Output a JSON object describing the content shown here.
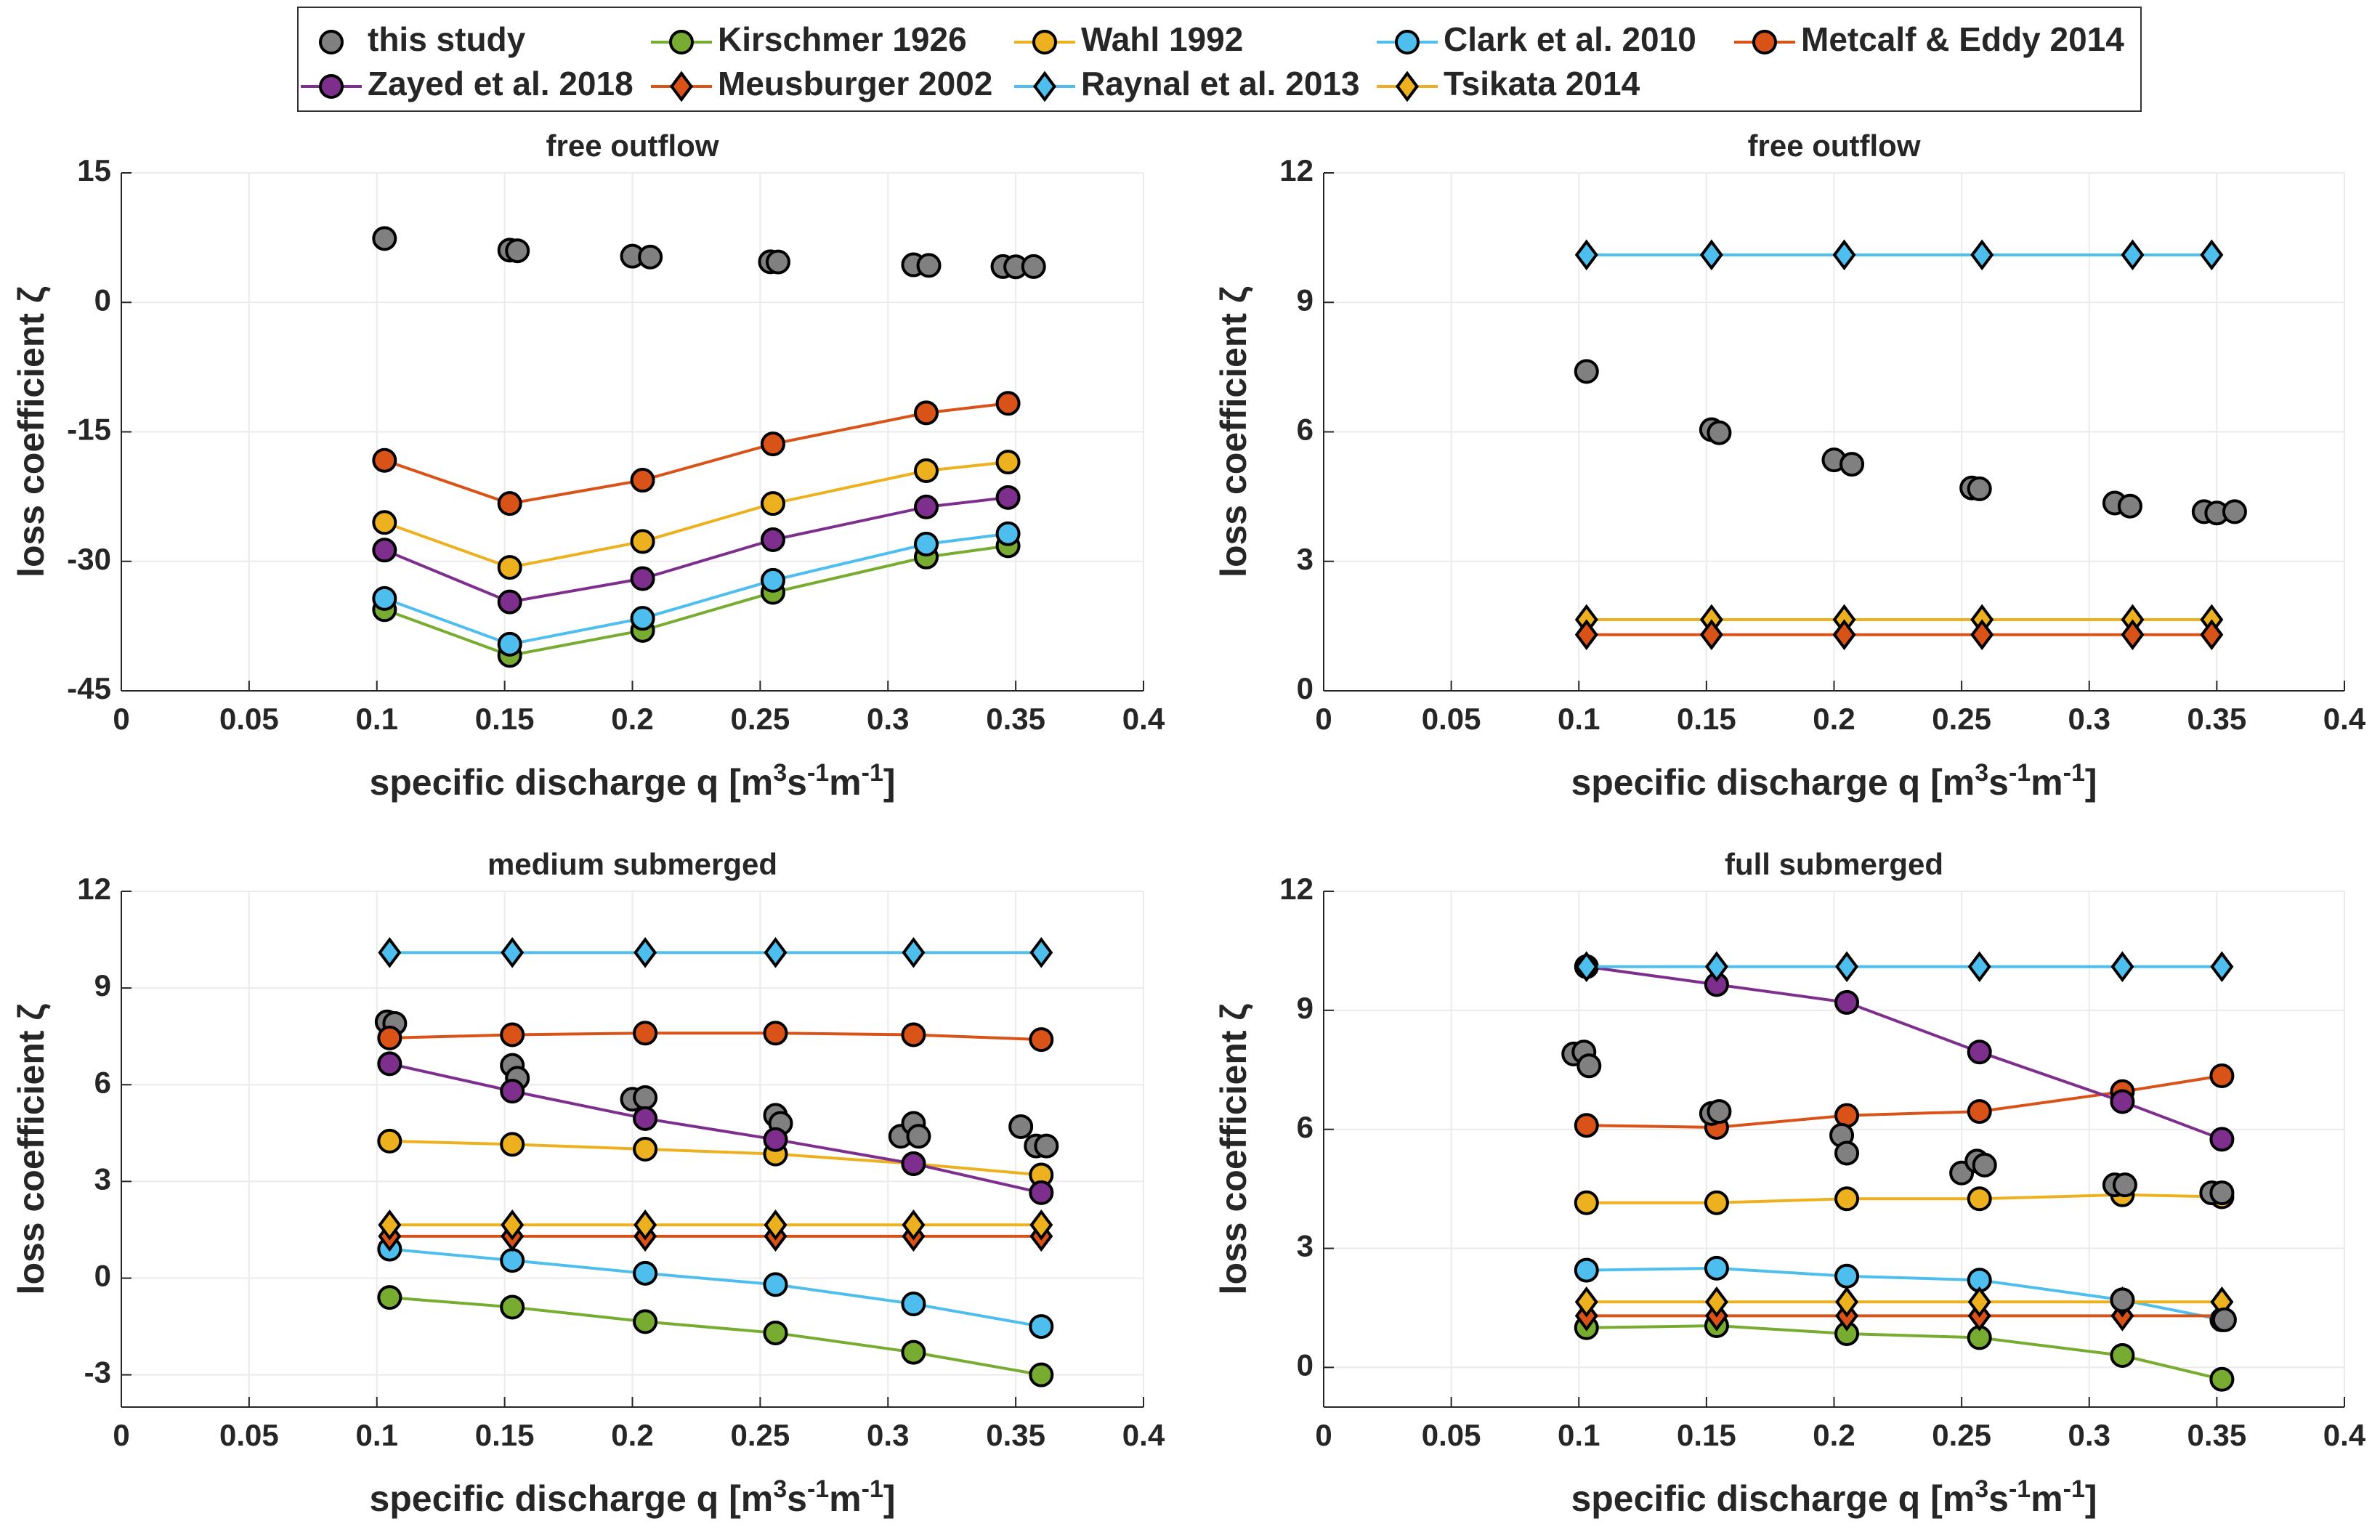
{
  "chart_data": [
    {
      "type": "line",
      "title": "free outflow",
      "xlabel": [
        "specific discharge q [m",
        "3",
        "s",
        "-1",
        "m",
        "-1",
        "]"
      ],
      "ylabel": "loss coefficient ζ",
      "xlim": [
        0,
        0.4
      ],
      "xticks": [
        0,
        0.05,
        0.1,
        0.15,
        0.2,
        0.25,
        0.3,
        0.35,
        0.4
      ],
      "ylim": [
        -45,
        15
      ],
      "yticks": [
        -45,
        -30,
        -15,
        0,
        15
      ],
      "grid": true,
      "series": [
        {
          "name": "this study",
          "color": "#808080",
          "marker": "circle",
          "line": false,
          "x": [
            0.103,
            0.152,
            0.155,
            0.2,
            0.207,
            0.254,
            0.257,
            0.31,
            0.316,
            0.345,
            0.35,
            0.357
          ],
          "values": [
            7.4,
            6.05,
            5.98,
            5.35,
            5.25,
            4.7,
            4.68,
            4.35,
            4.28,
            4.15,
            4.12,
            4.15
          ]
        },
        {
          "name": "Kirschmer 1926",
          "color": "#77ac30",
          "marker": "circle",
          "line": true,
          "x": [
            0.103,
            0.152,
            0.204,
            0.255,
            0.315,
            0.347
          ],
          "values": [
            -35.6,
            -40.9,
            -38,
            -33.6,
            -29.5,
            -28.2
          ]
        },
        {
          "name": "Wahl 1992",
          "color": "#edb120",
          "marker": "circle",
          "line": true,
          "x": [
            0.103,
            0.152,
            0.204,
            0.255,
            0.315,
            0.347
          ],
          "values": [
            -25.5,
            -30.7,
            -27.7,
            -23.3,
            -19.5,
            -18.5
          ]
        },
        {
          "name": "Clark et al. 2010",
          "color": "#4dbeee",
          "marker": "circle",
          "line": true,
          "x": [
            0.103,
            0.152,
            0.204,
            0.255,
            0.315,
            0.347
          ],
          "values": [
            -34.3,
            -39.6,
            -36.6,
            -32.2,
            -28,
            -26.8
          ]
        },
        {
          "name": "Metcalf & Eddy 2014",
          "color": "#d95319",
          "marker": "circle",
          "line": true,
          "x": [
            0.103,
            0.152,
            0.204,
            0.255,
            0.315,
            0.347
          ],
          "values": [
            -18.3,
            -23.3,
            -20.6,
            -16.4,
            -12.8,
            -11.7
          ]
        },
        {
          "name": "Zayed et al. 2018",
          "color": "#7e2f8e",
          "marker": "circle",
          "line": true,
          "x": [
            0.103,
            0.152,
            0.204,
            0.255,
            0.315,
            0.347
          ],
          "values": [
            -28.7,
            -34.7,
            -32,
            -27.5,
            -23.7,
            -22.6
          ]
        }
      ]
    },
    {
      "type": "line",
      "title": "free outflow",
      "xlabel": [
        "specific discharge q [m",
        "3",
        "s",
        "-1",
        "m",
        "-1",
        "]"
      ],
      "ylabel": "loss coefficient ζ",
      "xlim": [
        0,
        0.4
      ],
      "xticks": [
        0,
        0.05,
        0.1,
        0.15,
        0.2,
        0.25,
        0.3,
        0.35,
        0.4
      ],
      "ylim": [
        0,
        12
      ],
      "yticks": [
        0,
        3,
        6,
        9,
        12
      ],
      "grid": true,
      "series": [
        {
          "name": "Raynal et al. 2013",
          "color": "#4dbeee",
          "marker": "diamond",
          "line": true,
          "x": [
            0.103,
            0.152,
            0.204,
            0.258,
            0.317,
            0.348
          ],
          "values": [
            10.1,
            10.1,
            10.1,
            10.1,
            10.1,
            10.1
          ]
        },
        {
          "name": "Tsikata 2014",
          "color": "#edb120",
          "marker": "diamond",
          "line": true,
          "x": [
            0.103,
            0.152,
            0.204,
            0.258,
            0.317,
            0.348
          ],
          "values": [
            1.65,
            1.65,
            1.65,
            1.65,
            1.65,
            1.65
          ]
        },
        {
          "name": "Meusburger 2002",
          "color": "#d95319",
          "marker": "diamond",
          "line": true,
          "x": [
            0.103,
            0.152,
            0.204,
            0.258,
            0.317,
            0.348
          ],
          "values": [
            1.3,
            1.3,
            1.3,
            1.3,
            1.3,
            1.3
          ]
        },
        {
          "name": "this study",
          "color": "#808080",
          "marker": "circle",
          "line": false,
          "x": [
            0.103,
            0.152,
            0.155,
            0.2,
            0.207,
            0.254,
            0.257,
            0.31,
            0.316,
            0.345,
            0.35,
            0.357
          ],
          "values": [
            7.4,
            6.05,
            5.98,
            5.35,
            5.25,
            4.7,
            4.68,
            4.35,
            4.28,
            4.15,
            4.12,
            4.15
          ]
        }
      ]
    },
    {
      "type": "line",
      "title": "medium submerged",
      "xlabel": [
        "specific discharge q [m",
        "3",
        "s",
        "-1",
        "m",
        "-1",
        "]"
      ],
      "ylabel": "loss coefficient ζ",
      "xlim": [
        0,
        0.4
      ],
      "xticks": [
        0,
        0.05,
        0.1,
        0.15,
        0.2,
        0.25,
        0.3,
        0.35,
        0.4
      ],
      "ylim": [
        -4,
        12
      ],
      "yticks": [
        -3,
        0,
        3,
        6,
        9,
        12
      ],
      "grid": true,
      "series": [
        {
          "name": "this study",
          "color": "#808080",
          "marker": "circle",
          "line": false,
          "x": [
            0.104,
            0.107,
            0.153,
            0.155,
            0.2,
            0.205,
            0.256,
            0.258,
            0.305,
            0.31,
            0.312,
            0.352,
            0.358,
            0.362
          ],
          "values": [
            7.95,
            7.9,
            6.6,
            6.2,
            5.55,
            5.6,
            5.05,
            4.8,
            4.4,
            4.8,
            4.4,
            4.7,
            4.1,
            4.1
          ]
        },
        {
          "name": "Kirschmer 1926",
          "color": "#77ac30",
          "marker": "circle",
          "line": true,
          "x": [
            0.105,
            0.153,
            0.205,
            0.256,
            0.31,
            0.36
          ],
          "values": [
            -0.6,
            -0.9,
            -1.35,
            -1.7,
            -2.3,
            -3.0
          ]
        },
        {
          "name": "Wahl 1992",
          "color": "#edb120",
          "marker": "circle",
          "line": true,
          "x": [
            0.105,
            0.153,
            0.205,
            0.256,
            0.31,
            0.36
          ],
          "values": [
            4.25,
            4.15,
            4.0,
            3.85,
            3.55,
            3.2
          ]
        },
        {
          "name": "Clark et al. 2010",
          "color": "#4dbeee",
          "marker": "circle",
          "line": true,
          "x": [
            0.105,
            0.153,
            0.205,
            0.256,
            0.31,
            0.36
          ],
          "values": [
            0.9,
            0.55,
            0.15,
            -0.2,
            -0.8,
            -1.5
          ]
        },
        {
          "name": "Metcalf & Eddy 2014",
          "color": "#d95319",
          "marker": "circle",
          "line": true,
          "x": [
            0.105,
            0.153,
            0.205,
            0.256,
            0.31,
            0.36
          ],
          "values": [
            7.45,
            7.55,
            7.6,
            7.6,
            7.55,
            7.4
          ]
        },
        {
          "name": "Zayed et al. 2018",
          "color": "#7e2f8e",
          "marker": "circle",
          "line": true,
          "x": [
            0.105,
            0.153,
            0.205,
            0.256,
            0.31,
            0.36
          ],
          "values": [
            6.65,
            5.8,
            4.95,
            4.3,
            3.55,
            2.65
          ]
        },
        {
          "name": "Meusburger 2002",
          "color": "#d95319",
          "marker": "diamond",
          "line": true,
          "x": [
            0.105,
            0.153,
            0.205,
            0.256,
            0.31,
            0.36
          ],
          "values": [
            1.3,
            1.3,
            1.3,
            1.3,
            1.3,
            1.3
          ]
        },
        {
          "name": "Raynal et al. 2013",
          "color": "#4dbeee",
          "marker": "diamond",
          "line": true,
          "x": [
            0.105,
            0.153,
            0.205,
            0.256,
            0.31,
            0.36
          ],
          "values": [
            10.1,
            10.1,
            10.1,
            10.1,
            10.1,
            10.1
          ]
        },
        {
          "name": "Tsikata 2014",
          "color": "#edb120",
          "marker": "diamond",
          "line": true,
          "x": [
            0.105,
            0.153,
            0.205,
            0.256,
            0.31,
            0.36
          ],
          "values": [
            1.65,
            1.65,
            1.65,
            1.65,
            1.65,
            1.65
          ]
        }
      ]
    },
    {
      "type": "line",
      "title": "full submerged",
      "xlabel": [
        "specific discharge q [m",
        "3",
        "s",
        "-1",
        "m",
        "-1",
        "]"
      ],
      "ylabel": "loss coefficient ζ",
      "xlim": [
        0,
        0.4
      ],
      "xticks": [
        0,
        0.05,
        0.1,
        0.15,
        0.2,
        0.25,
        0.3,
        0.35,
        0.4
      ],
      "ylim": [
        -1,
        12
      ],
      "yticks": [
        0,
        3,
        6,
        9,
        12
      ],
      "grid": true,
      "series": [
        {
          "name": "Kirschmer 1926",
          "color": "#77ac30",
          "marker": "circle",
          "line": true,
          "x": [
            0.103,
            0.154,
            0.205,
            0.257,
            0.313,
            0.352
          ],
          "values": [
            1.0,
            1.05,
            0.85,
            0.75,
            0.3,
            -0.3
          ]
        },
        {
          "name": "Wahl 1992",
          "color": "#edb120",
          "marker": "circle",
          "line": true,
          "x": [
            0.103,
            0.154,
            0.205,
            0.257,
            0.313,
            0.352
          ],
          "values": [
            4.15,
            4.15,
            4.25,
            4.25,
            4.35,
            4.3
          ]
        },
        {
          "name": "Clark et al. 2010",
          "color": "#4dbeee",
          "marker": "circle",
          "line": true,
          "x": [
            0.103,
            0.154,
            0.205,
            0.257,
            0.313,
            0.352
          ],
          "values": [
            2.45,
            2.5,
            2.3,
            2.2,
            1.7,
            1.2
          ]
        },
        {
          "name": "Metcalf & Eddy 2014",
          "color": "#d95319",
          "marker": "circle",
          "line": true,
          "x": [
            0.103,
            0.154,
            0.205,
            0.257,
            0.313,
            0.352
          ],
          "values": [
            6.1,
            6.05,
            6.35,
            6.45,
            6.95,
            7.35
          ]
        },
        {
          "name": "Zayed et al. 2018",
          "color": "#7e2f8e",
          "marker": "circle",
          "line": true,
          "x": [
            0.103,
            0.154,
            0.205,
            0.257,
            0.313,
            0.352
          ],
          "values": [
            10.1,
            9.65,
            9.2,
            7.95,
            6.7,
            5.75
          ]
        },
        {
          "name": "Meusburger 2002",
          "color": "#d95319",
          "marker": "diamond",
          "line": true,
          "x": [
            0.103,
            0.154,
            0.205,
            0.257,
            0.313,
            0.352
          ],
          "values": [
            1.3,
            1.3,
            1.3,
            1.3,
            1.3,
            1.3
          ]
        },
        {
          "name": "Raynal et al. 2013",
          "color": "#4dbeee",
          "marker": "diamond",
          "line": true,
          "x": [
            0.103,
            0.154,
            0.205,
            0.257,
            0.313,
            0.352
          ],
          "values": [
            10.1,
            10.1,
            10.1,
            10.1,
            10.1,
            10.1
          ]
        },
        {
          "name": "Tsikata 2014",
          "color": "#edb120",
          "marker": "diamond",
          "line": true,
          "x": [
            0.103,
            0.154,
            0.205,
            0.257,
            0.313,
            0.352
          ],
          "values": [
            1.65,
            1.65,
            1.65,
            1.65,
            1.65,
            1.65
          ]
        },
        {
          "name": "this study",
          "color": "#808080",
          "marker": "circle",
          "line": false,
          "x": [
            0.098,
            0.102,
            0.104,
            0.152,
            0.155,
            0.203,
            0.205,
            0.25,
            0.256,
            0.259,
            0.31,
            0.314,
            0.313,
            0.348,
            0.352,
            0.353
          ],
          "values": [
            7.9,
            7.95,
            7.6,
            6.4,
            6.45,
            5.85,
            5.4,
            4.9,
            5.2,
            5.1,
            4.6,
            4.6,
            1.7,
            4.4,
            4.4,
            1.2
          ]
        }
      ]
    }
  ]
}
